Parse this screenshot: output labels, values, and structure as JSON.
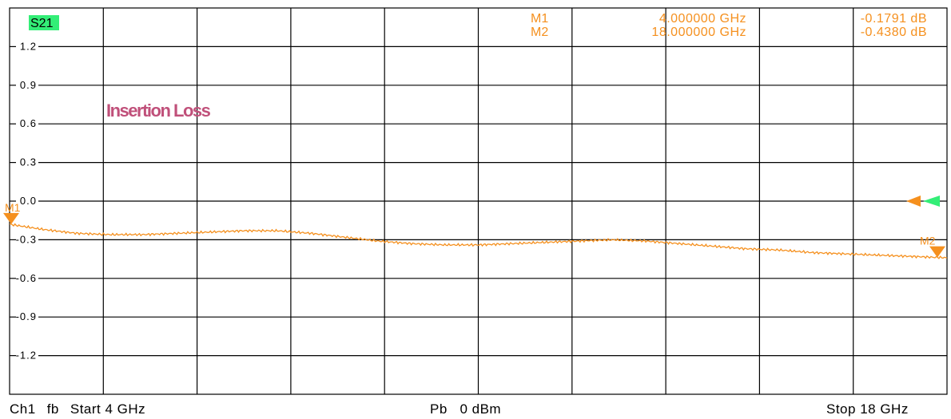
{
  "chart_data": {
    "type": "line",
    "trace_label": "S21",
    "trace_label_color": "#33ee77",
    "trace_color": "#f5901e",
    "annotation": "Insertion Loss",
    "annotation_color": "#c0507a",
    "xlim": [
      4,
      18
    ],
    "ylim": [
      -1.5,
      1.5
    ],
    "y_ticks": [
      {
        "value": 1.2,
        "label": "1.2"
      },
      {
        "value": 0.9,
        "label": "0.9"
      },
      {
        "value": 0.6,
        "label": "0.6"
      },
      {
        "value": 0.3,
        "label": "0.3"
      },
      {
        "value": 0.0,
        "label": "0.0"
      },
      {
        "value": -0.3,
        "label": "-0.3"
      },
      {
        "value": -0.6,
        "label": "-0.6"
      },
      {
        "value": -0.9,
        "label": "-0.9"
      },
      {
        "value": -1.2,
        "label": "-1.2"
      }
    ],
    "x_gridlines": [
      5.4,
      6.8,
      8.2,
      9.6,
      11.0,
      12.4,
      13.8,
      15.2,
      16.6
    ],
    "grid": true,
    "series": [
      {
        "x": [
          4.0,
          4.5,
          5.0,
          5.5,
          6.0,
          6.5,
          7.0,
          7.5,
          8.0,
          8.5,
          9.0,
          9.5,
          10.0,
          10.5,
          11.0,
          11.5,
          12.0,
          12.5,
          13.0,
          13.5,
          14.0,
          14.5,
          15.0,
          15.5,
          16.0,
          16.5,
          17.0,
          17.5,
          18.0
        ],
        "y": [
          -0.18,
          -0.22,
          -0.25,
          -0.26,
          -0.26,
          -0.25,
          -0.24,
          -0.23,
          -0.23,
          -0.25,
          -0.28,
          -0.31,
          -0.33,
          -0.34,
          -0.34,
          -0.33,
          -0.32,
          -0.31,
          -0.3,
          -0.31,
          -0.33,
          -0.35,
          -0.37,
          -0.38,
          -0.4,
          -0.41,
          -0.42,
          -0.43,
          -0.44
        ]
      }
    ],
    "markers": [
      {
        "name": "M1",
        "freq": "4.000000 GHz",
        "value": "-0.1791 dB",
        "x": 4.0,
        "y": -0.1791
      },
      {
        "name": "M2",
        "freq": "18.000000 GHz",
        "value": "-0.4380 dB",
        "x": 18.0,
        "y": -0.438
      }
    ],
    "reference_level": 0.0
  },
  "footer": {
    "channel": "Ch1",
    "mode": "fb",
    "start": "Start 4 GHz",
    "power": "Pb   0 dBm",
    "stop": "Stop 18 GHz"
  }
}
